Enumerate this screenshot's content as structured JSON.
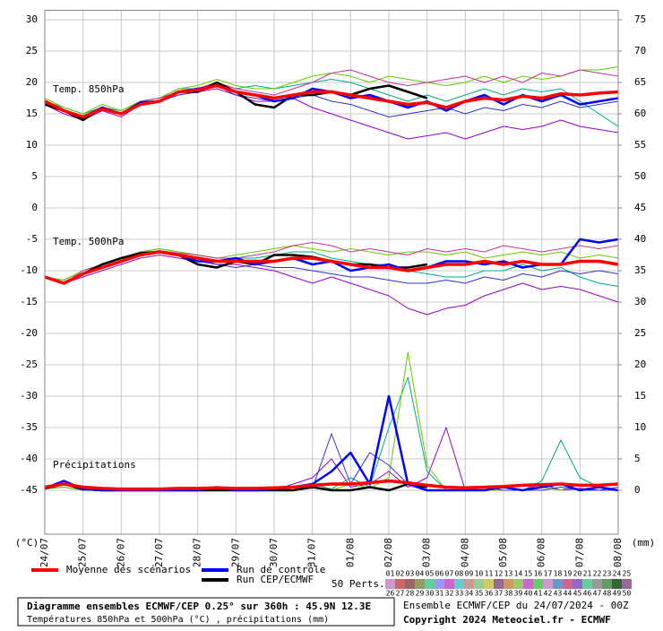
{
  "chart_data": {
    "type": "line",
    "panel_labels": [
      "Temp. 850hPa",
      "Temp. 500hPa",
      "Précipitations"
    ],
    "y_unit": "(°C)",
    "y2_unit": "(mm)",
    "x": [
      0,
      0.5,
      1,
      1.5,
      2,
      2.5,
      3,
      3.5,
      4,
      4.5,
      5,
      5.5,
      6,
      6.5,
      7,
      7.5,
      8,
      8.5,
      9,
      9.5,
      10,
      10.5,
      11,
      11.5,
      12,
      12.5,
      13,
      13.5,
      14,
      14.5,
      15
    ],
    "xlim": [
      0,
      15
    ],
    "xticks": [
      {
        "value": 0,
        "label": "24/07"
      },
      {
        "value": 1,
        "label": "25/07"
      },
      {
        "value": 2,
        "label": "26/07"
      },
      {
        "value": 3,
        "label": "27/07"
      },
      {
        "value": 4,
        "label": "28/07"
      },
      {
        "value": 5,
        "label": "29/07"
      },
      {
        "value": 6,
        "label": "30/07"
      },
      {
        "value": 7,
        "label": "31/07"
      },
      {
        "value": 8,
        "label": "01/08"
      },
      {
        "value": 9,
        "label": "02/08"
      },
      {
        "value": 10,
        "label": "03/08"
      },
      {
        "value": 11,
        "label": "04/08"
      },
      {
        "value": 12,
        "label": "05/08"
      },
      {
        "value": 13,
        "label": "06/08"
      },
      {
        "value": 14,
        "label": "07/08"
      },
      {
        "value": 15,
        "label": "08/08"
      }
    ],
    "ylim": [
      -52,
      31.5
    ],
    "yticks": [
      30,
      25,
      20,
      15,
      10,
      5,
      0,
      -5,
      -10,
      -15,
      -20,
      -25,
      -30,
      -35,
      -40,
      -45
    ],
    "y2lim": [
      -7,
      76.5
    ],
    "y2ticks": [
      75,
      70,
      65,
      60,
      55,
      50,
      45,
      40,
      35,
      30,
      25,
      20,
      15,
      10,
      5,
      0
    ],
    "grid": true,
    "series": [
      {
        "name": "Moyenne des scénarios",
        "color": "#ff0000",
        "t850": [
          17,
          15.5,
          14.5,
          15.8,
          15,
          16.5,
          17,
          18.5,
          18.8,
          19.5,
          18.5,
          18,
          17.5,
          18,
          18.5,
          18.5,
          18,
          17.5,
          17,
          16.5,
          16.8,
          16,
          17,
          17.5,
          17.2,
          17.8,
          17.5,
          18.2,
          18,
          18.3,
          18.5
        ],
        "t500": [
          -11,
          -12,
          -10.5,
          -9.5,
          -8.5,
          -7.5,
          -7,
          -7.5,
          -8,
          -8.5,
          -8.5,
          -8.5,
          -8.5,
          -8,
          -8,
          -8.5,
          -9,
          -9.5,
          -9.5,
          -10,
          -9.5,
          -9,
          -9,
          -8.5,
          -9,
          -8.5,
          -9,
          -9,
          -8.5,
          -8.5,
          -9
        ],
        "precip": [
          0.5,
          1,
          0.5,
          0.3,
          0.2,
          0.2,
          0.2,
          0.3,
          0.3,
          0.4,
          0.3,
          0.3,
          0.4,
          0.5,
          0.8,
          1,
          1,
          1.2,
          1.5,
          1.2,
          0.8,
          0.5,
          0.4,
          0.5,
          0.6,
          0.8,
          0.9,
          1,
          0.8,
          0.8,
          1
        ]
      },
      {
        "name": "Run de contrôle",
        "color": "#0000ff",
        "t850": [
          17,
          15.5,
          14.5,
          16,
          15,
          16.8,
          17,
          18.5,
          19,
          19.5,
          18.5,
          18,
          17,
          17.5,
          19,
          18.5,
          17.5,
          18,
          17,
          16,
          17,
          15.5,
          17,
          18,
          16.5,
          18,
          17,
          18,
          16.5,
          17,
          17.5
        ],
        "t500": [
          -11,
          -12,
          -10.5,
          -9.5,
          -8.5,
          -7.5,
          -7,
          -7.5,
          -8.5,
          -8.5,
          -8,
          -9,
          -8.5,
          -8,
          -9,
          -8.5,
          -10,
          -9.5,
          -9,
          -10,
          -9.5,
          -8.5,
          -8.5,
          -9,
          -8.5,
          -9.5,
          -9,
          -9,
          -5,
          -5.5,
          -5
        ],
        "precip": [
          0.3,
          1.5,
          0.2,
          0,
          0,
          0,
          0,
          0,
          0,
          0.5,
          0,
          0,
          0.2,
          0.5,
          1,
          3,
          6,
          1,
          15,
          1,
          0,
          0,
          0,
          0,
          0.5,
          0,
          0.5,
          1,
          0,
          0.5,
          0
        ]
      },
      {
        "name": "Run CEP/ECMWF",
        "color": "#000000",
        "t850": [
          16.5,
          15.5,
          14,
          16,
          15,
          16.8,
          17,
          18.5,
          18.5,
          20,
          18.5,
          16.5,
          16,
          18,
          18,
          18.5,
          18,
          19,
          19.5,
          18.5,
          17.5,
          null,
          null,
          null,
          null,
          null,
          null,
          null,
          null,
          null,
          null
        ],
        "t500": [
          -11,
          -12,
          -10.5,
          -9,
          -8,
          -7.2,
          -7,
          -7.5,
          -9,
          -9.5,
          -8.5,
          -9,
          -7.5,
          -7.5,
          -7.8,
          -8.5,
          -9,
          -9,
          -9.5,
          -9.5,
          -9,
          null,
          null,
          null,
          null,
          null,
          null,
          null,
          null,
          null,
          null
        ],
        "precip": [
          0.3,
          1,
          0.2,
          0,
          0,
          0,
          0,
          0,
          0,
          0,
          0,
          0,
          0,
          0,
          0.5,
          0,
          0,
          0.5,
          0,
          1,
          0.5,
          null,
          null,
          null,
          null,
          null,
          null,
          null,
          null,
          null,
          null
        ]
      }
    ],
    "perturbations": [
      {
        "color": "#9900cc",
        "t850": [
          16.5,
          15,
          14,
          15.5,
          14.5,
          16.5,
          17,
          18,
          18.5,
          19,
          18,
          17,
          17,
          17.5,
          16,
          15,
          14,
          13,
          12,
          11,
          11.5,
          12,
          11,
          12,
          13,
          12.5,
          13,
          14,
          13,
          12.5,
          12
        ],
        "t500": [
          -11,
          -12,
          -11,
          -10,
          -9,
          -8,
          -7.5,
          -8,
          -8.5,
          -9,
          -9,
          -9.5,
          -10,
          -11,
          -12,
          -11,
          -12,
          -13,
          -14,
          -16,
          -17,
          -16,
          -15.5,
          -14,
          -13,
          -12,
          -13,
          -12.5,
          -13,
          -14,
          -15
        ],
        "precip": [
          0.5,
          1,
          0,
          0,
          0,
          0,
          0,
          0,
          0,
          0,
          0,
          0.2,
          0,
          1,
          2,
          5,
          0.5,
          1,
          3,
          0.5,
          2,
          10,
          0,
          0,
          0.5,
          0,
          1,
          0,
          0.3,
          0,
          0.5
        ]
      },
      {
        "color": "#00aa88",
        "t850": [
          17,
          16,
          15,
          16,
          15.5,
          17,
          17.5,
          19,
          19,
          20,
          19,
          19.5,
          19,
          19.5,
          20,
          20.5,
          20,
          19,
          18,
          17,
          18,
          17,
          18,
          19,
          18,
          19,
          18.5,
          19,
          17,
          15,
          13
        ],
        "t500": [
          -11,
          -11.5,
          -10,
          -9,
          -8,
          -7,
          -6.5,
          -7,
          -7.5,
          -8,
          -8,
          -8,
          -7.5,
          -7,
          -7,
          -8,
          -8.5,
          -9,
          -9,
          -10,
          -10.5,
          -11,
          -11,
          -10,
          -10,
          -9,
          -10,
          -9.5,
          -11,
          -12,
          -12.5
        ],
        "precip": [
          0.3,
          0.5,
          0,
          0,
          0,
          0,
          0,
          0,
          0,
          0.5,
          0,
          0,
          0.5,
          0,
          1,
          0.2,
          2,
          0.5,
          10,
          18,
          3,
          0,
          0,
          0,
          0.5,
          0,
          1.5,
          8,
          2,
          0.5,
          0
        ]
      },
      {
        "color": "#66cc00",
        "t850": [
          17.5,
          16,
          15,
          16.5,
          15.5,
          17,
          17.5,
          19,
          19.5,
          20.5,
          19.5,
          19,
          19,
          20,
          21,
          21.5,
          21,
          20,
          21,
          20.5,
          20,
          19.5,
          20,
          21,
          20,
          21,
          20.5,
          21,
          22,
          22,
          22.5
        ],
        "t500": [
          -11,
          -11.5,
          -10,
          -9,
          -8,
          -7,
          -6.5,
          -7,
          -7.5,
          -8,
          -7.5,
          -7,
          -6.5,
          -6,
          -6.5,
          -7,
          -6.5,
          -7,
          -7.5,
          -7,
          -7,
          -7.5,
          -7,
          -8,
          -7.5,
          -7,
          -7.5,
          -7,
          -8,
          -7.5,
          -8
        ],
        "precip": [
          0.2,
          0.5,
          0,
          0,
          0,
          0,
          0,
          0,
          0,
          0,
          0.5,
          0,
          0,
          0,
          0.5,
          0,
          1,
          0.3,
          2,
          22,
          4,
          0,
          0,
          0,
          0,
          0,
          0.5,
          0,
          1,
          0.5,
          0
        ]
      },
      {
        "color": "#3333cc",
        "t850": [
          16.8,
          15.5,
          14.2,
          15.8,
          15,
          16.5,
          17,
          18,
          18.5,
          19.5,
          18,
          17.5,
          17,
          17.5,
          18,
          17,
          16.5,
          15.5,
          14.5,
          15,
          15.5,
          16,
          15,
          16,
          15.5,
          16.5,
          16,
          17,
          16,
          16.5,
          17
        ],
        "t500": [
          -11,
          -12,
          -10.5,
          -9.5,
          -8.5,
          -7.5,
          -7,
          -7.5,
          -8,
          -9,
          -9.5,
          -9,
          -9.5,
          -9.5,
          -10,
          -10.5,
          -11,
          -11,
          -11.5,
          -12,
          -12,
          -11.5,
          -12,
          -11,
          -11.5,
          -10.5,
          -11,
          -10,
          -10.5,
          -10,
          -10.5
        ],
        "precip": [
          0.3,
          1,
          0,
          0,
          0,
          0,
          0,
          0,
          0,
          0,
          0,
          0,
          0,
          0.5,
          0.3,
          9,
          1,
          6,
          4,
          1,
          0,
          0,
          0,
          0.5,
          0,
          0,
          0,
          0.5,
          0,
          0,
          0
        ]
      },
      {
        "color": "#cc3399",
        "t850": [
          17,
          15.5,
          14.5,
          16,
          15,
          17,
          17.5,
          18.5,
          19,
          20,
          19,
          18.5,
          18,
          19,
          20,
          21.5,
          22,
          21,
          20,
          19.5,
          20,
          20.5,
          21,
          20,
          21,
          20,
          21.5,
          21,
          22,
          21.5,
          21
        ],
        "t500": [
          -11,
          -12,
          -10,
          -9,
          -8,
          -7.2,
          -6.8,
          -7.2,
          -7.5,
          -8,
          -8,
          -7.5,
          -7,
          -6,
          -5.5,
          -6,
          -7,
          -6.5,
          -7,
          -7.5,
          -6.5,
          -7,
          -6.5,
          -7,
          -6,
          -6.5,
          -7,
          -6.5,
          -6,
          -6.5,
          -6
        ]
      }
    ],
    "pert_legend": {
      "label": "50 Perts.",
      "items": [
        {
          "name": "01",
          "color": "#cc9999"
        },
        {
          "name": "02",
          "color": "#cc66cc"
        },
        {
          "name": "03",
          "color": "#9999cc"
        },
        {
          "name": "04",
          "color": "#996633"
        },
        {
          "name": "05",
          "color": "#6699cc"
        },
        {
          "name": "06",
          "color": "#33cccc"
        },
        {
          "name": "07",
          "color": "#cc99cc"
        },
        {
          "name": "08",
          "color": "#99cc99"
        },
        {
          "name": "09",
          "color": "#cccc66"
        },
        {
          "name": "10",
          "color": "#9966cc"
        },
        {
          "name": "11",
          "color": "#66cc99"
        },
        {
          "name": "12",
          "color": "#cc6666"
        },
        {
          "name": "13",
          "color": "#66cc66"
        },
        {
          "name": "14",
          "color": "#99cccc"
        },
        {
          "name": "15",
          "color": "#cc9966"
        },
        {
          "name": "16",
          "color": "#6666cc"
        },
        {
          "name": "17",
          "color": "#cc66cc"
        },
        {
          "name": "18",
          "color": "#66cccc"
        },
        {
          "name": "19",
          "color": "#cccc99"
        },
        {
          "name": "20",
          "color": "#cc6699"
        },
        {
          "name": "21",
          "color": "#99cc66"
        },
        {
          "name": "22",
          "color": "#669966"
        },
        {
          "name": "23",
          "color": "#6699cc"
        },
        {
          "name": "24",
          "color": "#33cc33"
        },
        {
          "name": "25",
          "color": "#666666"
        },
        {
          "name": "26",
          "color": "#cc99cc"
        },
        {
          "name": "27",
          "color": "#cc6666"
        },
        {
          "name": "28",
          "color": "#996666"
        },
        {
          "name": "29",
          "color": "#999966"
        },
        {
          "name": "30",
          "color": "#66cc99"
        },
        {
          "name": "31",
          "color": "#9999ff"
        },
        {
          "name": "32",
          "color": "#cc66cc"
        },
        {
          "name": "33",
          "color": "#66cccc"
        },
        {
          "name": "34",
          "color": "#cc9999"
        },
        {
          "name": "35",
          "color": "#99cc99"
        },
        {
          "name": "36",
          "color": "#cccc66"
        },
        {
          "name": "37",
          "color": "#996699"
        },
        {
          "name": "38",
          "color": "#cc9966"
        },
        {
          "name": "39",
          "color": "#99cc66"
        },
        {
          "name": "40",
          "color": "#cc66cc"
        },
        {
          "name": "41",
          "color": "#66cc66"
        },
        {
          "name": "42",
          "color": "#cc99cc"
        },
        {
          "name": "43",
          "color": "#6699cc"
        },
        {
          "name": "44",
          "color": "#cc6699"
        },
        {
          "name": "45",
          "color": "#9966cc"
        },
        {
          "name": "46",
          "color": "#66cc99"
        },
        {
          "name": "47",
          "color": "#999999"
        },
        {
          "name": "48",
          "color": "#669966"
        },
        {
          "name": "49",
          "color": "#336633"
        },
        {
          "name": "50",
          "color": "#996699"
        }
      ]
    },
    "footer": {
      "title": "Diagramme ensembles ECMWF/CEP 0.25° sur 360h : 45.9N 12.3E",
      "subtitle": "Températures 850hPa et 500hPa (°C) , précipitations (mm)",
      "run": "Ensemble ECMWF/CEP du 24/07/2024 - 00Z",
      "copyright": "Copyright 2024 Meteociel.fr - ECMWF"
    }
  }
}
